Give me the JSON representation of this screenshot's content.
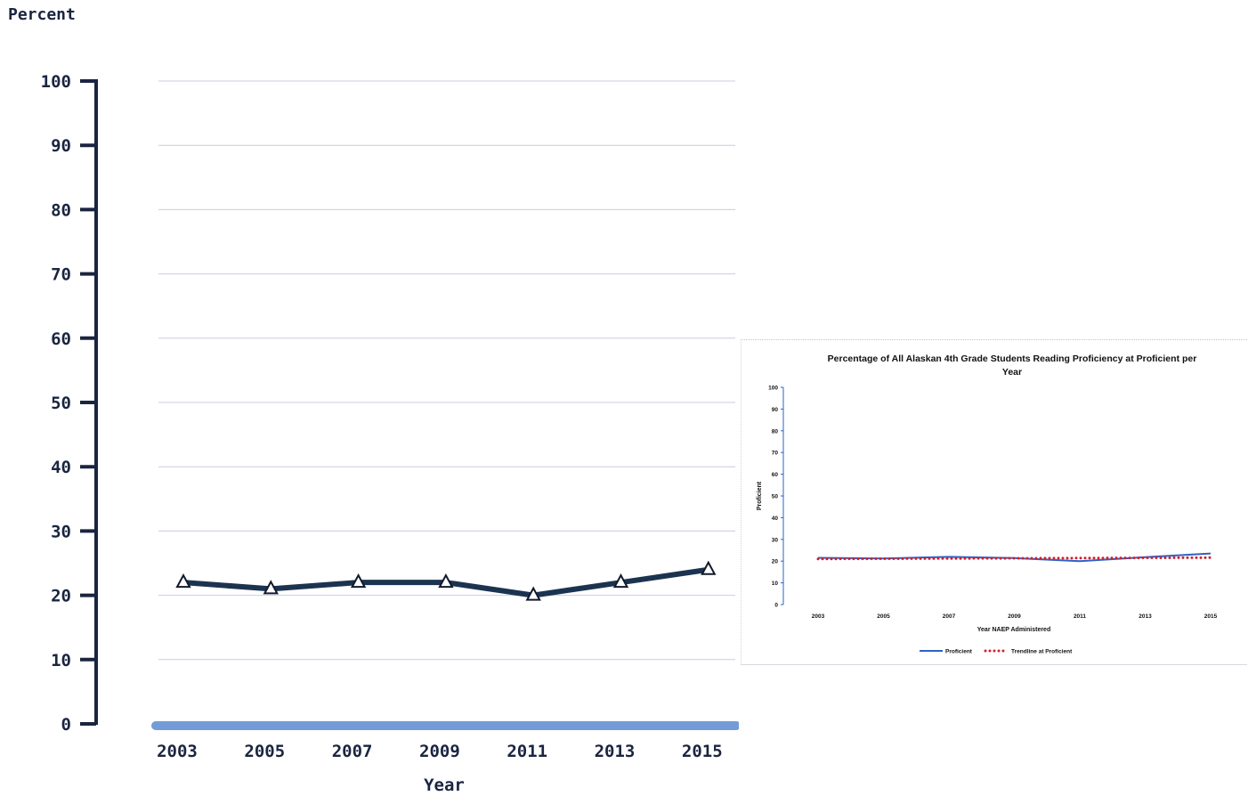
{
  "chart_data": [
    {
      "type": "line",
      "ylabel": "Percent",
      "xlabel": "Year",
      "ylim": [
        0,
        100
      ],
      "yticks": [
        0,
        10,
        20,
        30,
        40,
        50,
        60,
        70,
        80,
        90,
        100
      ],
      "categories": [
        "2003",
        "2005",
        "2007",
        "2009",
        "2011",
        "2013",
        "2015"
      ],
      "series": [
        {
          "values": [
            22,
            21,
            22,
            22,
            20,
            22,
            24
          ],
          "color": "#1c3350",
          "marker": "triangle"
        }
      ],
      "grid": true
    },
    {
      "type": "line",
      "title": "Percentage of All Alaskan 4th Grade Students Reading Proficiency at  Proficient per Year",
      "ylabel": "Proficient",
      "xlabel": "Year NAEP  Administered",
      "ylim": [
        0,
        100
      ],
      "yticks": [
        0,
        10,
        20,
        30,
        40,
        50,
        60,
        70,
        80,
        90,
        100
      ],
      "categories": [
        "2003",
        "2005",
        "2007",
        "2009",
        "2011",
        "2013",
        "2015"
      ],
      "series": [
        {
          "name": "Proficient",
          "values": [
            21.5,
            21.2,
            22.0,
            21.4,
            20.0,
            21.8,
            23.5
          ],
          "color": "#2e62c4",
          "style": "solid"
        },
        {
          "name": "Trendline at Proficient",
          "values": [
            21.0,
            21.1,
            21.2,
            21.3,
            21.4,
            21.5,
            21.6
          ],
          "color": "#d21f2c",
          "style": "dotted"
        }
      ],
      "legend": "bottom",
      "grid": false
    }
  ]
}
